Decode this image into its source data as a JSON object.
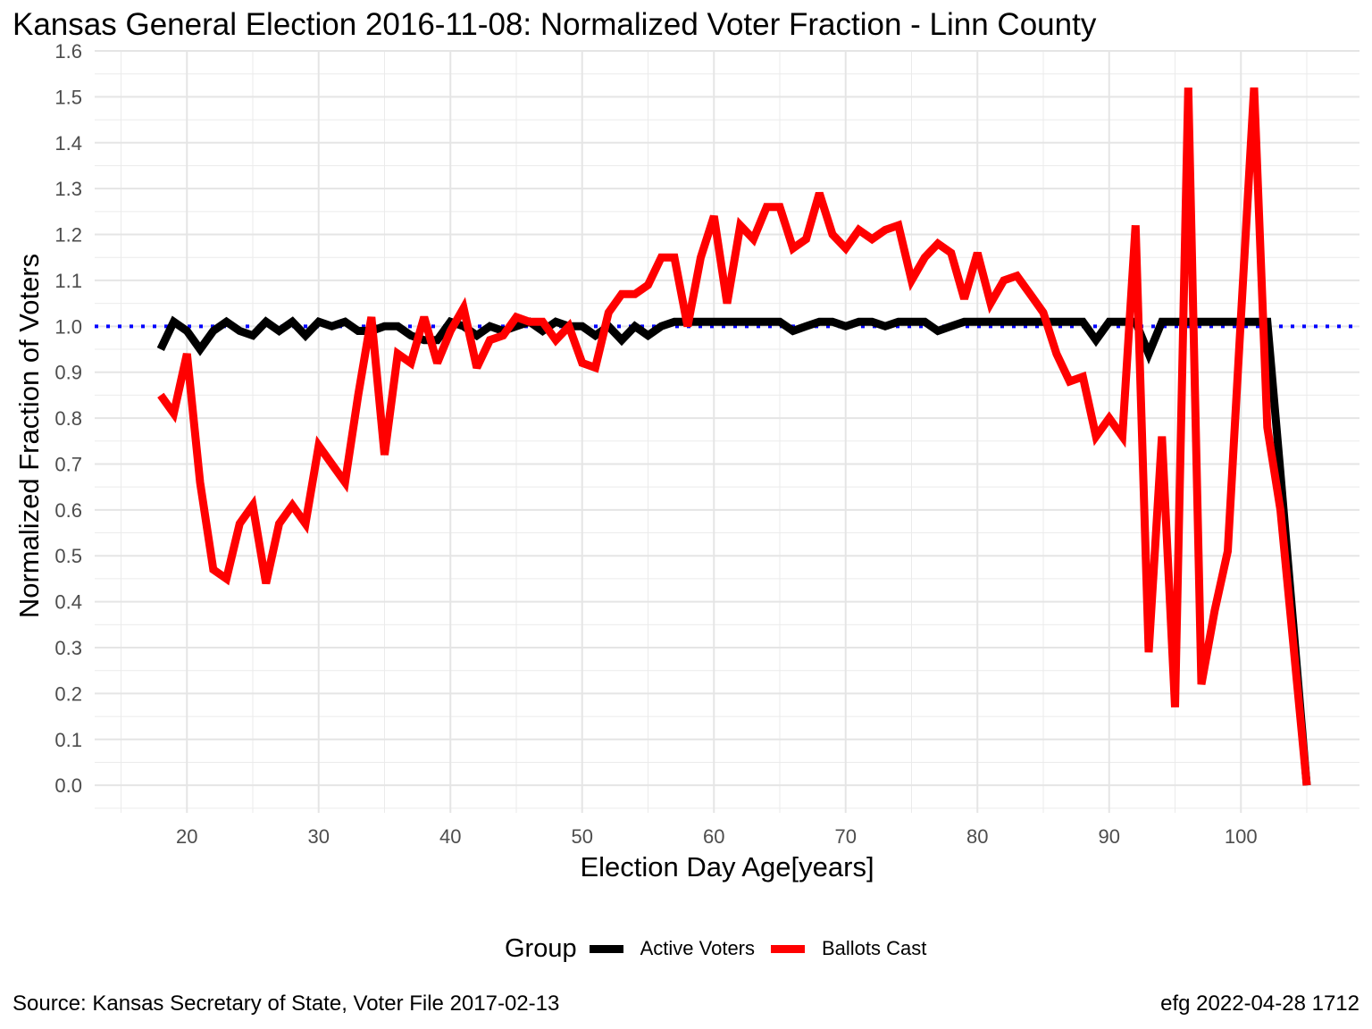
{
  "title": "Kansas General Election 2016-11-08:  Normalized Voter Fraction - Linn County",
  "caption_left": "Source:  Kansas Secretary of State, Voter File  2017-02-13",
  "caption_right": "efg 2022-04-28 1712",
  "legend": {
    "title": "Group",
    "items": [
      {
        "label": "Active Voters",
        "color": "#000000"
      },
      {
        "label": "Ballots Cast",
        "color": "#ff0000"
      }
    ]
  },
  "chart_data": {
    "type": "line",
    "title": "Kansas General Election 2016-11-08:  Normalized Voter Fraction - Linn County",
    "xlabel": "Election Day Age[years]",
    "ylabel": "Normalized Fraction of Voters",
    "xlim": [
      13,
      109
    ],
    "ylim": [
      -0.06,
      1.6
    ],
    "xticks": [
      20,
      30,
      40,
      50,
      60,
      70,
      80,
      90,
      100
    ],
    "xtick_labels": [
      "20",
      "30",
      "40",
      "50",
      "60",
      "70",
      "80",
      "90",
      "100"
    ],
    "yticks": [
      0.0,
      0.1,
      0.2,
      0.3,
      0.4,
      0.5,
      0.6,
      0.7,
      0.8,
      0.9,
      1.0,
      1.1,
      1.2,
      1.3,
      1.4,
      1.5,
      1.6
    ],
    "ytick_labels": [
      "0.0",
      "0.1",
      "0.2",
      "0.3",
      "0.4",
      "0.5",
      "0.6",
      "0.7",
      "0.8",
      "0.9",
      "1.0",
      "1.1",
      "1.2",
      "1.3",
      "1.4",
      "1.5",
      "1.6"
    ],
    "grid": true,
    "legend_position": "bottom",
    "reference_line": {
      "y": 1.0,
      "color": "#0000ff",
      "style": "dotted"
    },
    "x": [
      18,
      19,
      20,
      21,
      22,
      23,
      24,
      25,
      26,
      27,
      28,
      29,
      30,
      31,
      32,
      33,
      34,
      35,
      36,
      37,
      38,
      39,
      40,
      41,
      42,
      43,
      44,
      45,
      46,
      47,
      48,
      49,
      50,
      51,
      52,
      53,
      54,
      55,
      56,
      57,
      58,
      59,
      60,
      61,
      62,
      63,
      64,
      65,
      66,
      67,
      68,
      69,
      70,
      71,
      72,
      73,
      74,
      75,
      76,
      77,
      78,
      79,
      80,
      81,
      82,
      83,
      84,
      85,
      86,
      87,
      88,
      89,
      90,
      91,
      92,
      93,
      94,
      95,
      96,
      97,
      98,
      99,
      100,
      101,
      102,
      103,
      104,
      105
    ],
    "series": [
      {
        "name": "Active Voters",
        "color": "#000000",
        "values": [
          0.95,
          1.01,
          0.99,
          0.95,
          0.99,
          1.01,
          0.99,
          0.98,
          1.01,
          0.99,
          1.01,
          0.98,
          1.01,
          1.0,
          1.01,
          0.99,
          0.99,
          1.0,
          1.0,
          0.98,
          0.97,
          0.97,
          1.01,
          1.0,
          0.98,
          1.0,
          0.99,
          1.0,
          1.01,
          0.99,
          1.01,
          1.0,
          1.0,
          0.98,
          1.0,
          0.97,
          1.0,
          0.98,
          1.0,
          1.01,
          1.01,
          1.01,
          1.01,
          1.01,
          1.01,
          1.01,
          1.01,
          1.01,
          0.99,
          1.0,
          1.01,
          1.01,
          1.0,
          1.01,
          1.01,
          1.0,
          1.01,
          1.01,
          1.01,
          0.99,
          1.0,
          1.01,
          1.01,
          1.01,
          1.01,
          1.01,
          1.01,
          1.01,
          1.01,
          1.01,
          1.01,
          0.97,
          1.01,
          1.01,
          1.01,
          0.94,
          1.01,
          1.01,
          1.01,
          1.01,
          1.01,
          1.01,
          1.01,
          1.01,
          1.01,
          0.68,
          0.34,
          0.0
        ]
      },
      {
        "name": "Ballots Cast",
        "color": "#ff0000",
        "values": [
          0.85,
          0.81,
          0.94,
          0.66,
          0.47,
          0.45,
          0.57,
          0.61,
          0.44,
          0.57,
          0.61,
          0.57,
          0.74,
          0.7,
          0.66,
          0.85,
          1.02,
          0.72,
          0.94,
          0.92,
          1.02,
          0.92,
          0.99,
          1.04,
          0.91,
          0.97,
          0.98,
          1.02,
          1.01,
          1.01,
          0.97,
          1.0,
          0.92,
          0.91,
          1.03,
          1.07,
          1.07,
          1.09,
          1.15,
          1.15,
          1.0,
          1.15,
          1.24,
          1.05,
          1.22,
          1.19,
          1.26,
          1.26,
          1.17,
          1.19,
          1.29,
          1.2,
          1.17,
          1.21,
          1.19,
          1.21,
          1.22,
          1.1,
          1.15,
          1.18,
          1.16,
          1.06,
          1.16,
          1.05,
          1.1,
          1.11,
          1.07,
          1.03,
          0.94,
          0.88,
          0.89,
          0.76,
          0.8,
          0.76,
          1.22,
          0.29,
          0.76,
          0.17,
          1.52,
          0.22,
          0.38,
          0.51,
          1.02,
          1.52,
          0.78,
          0.6,
          0.3,
          0.0
        ]
      }
    ]
  }
}
